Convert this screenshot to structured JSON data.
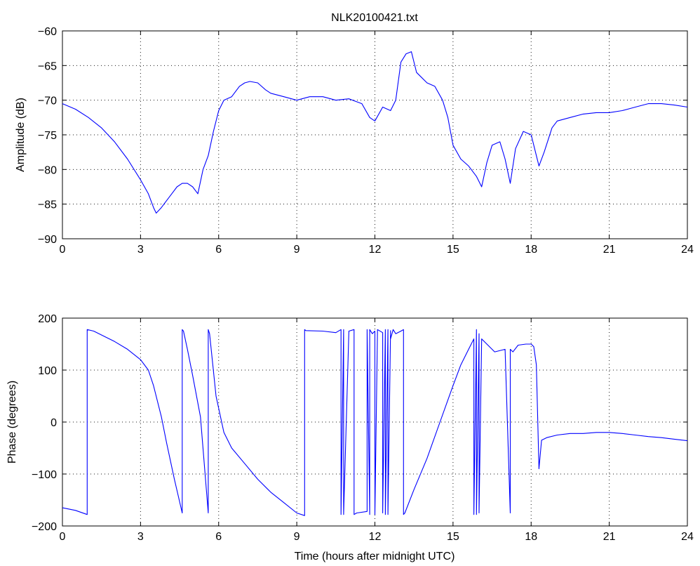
{
  "chart_data": [
    {
      "type": "line",
      "title": "NLK20100421.txt",
      "xlabel": "",
      "ylabel": "Amplitude (dB)",
      "xlim": [
        0,
        24
      ],
      "ylim": [
        -90,
        -60
      ],
      "xticks": [
        0,
        3,
        6,
        9,
        12,
        15,
        18,
        21,
        24
      ],
      "yticks": [
        -90,
        -85,
        -80,
        -75,
        -70,
        -65,
        -60
      ],
      "grid": true,
      "color": "#0000ff",
      "series": [
        {
          "x": [
            0,
            0.5,
            1.0,
            1.5,
            2.0,
            2.5,
            3.0,
            3.3,
            3.5,
            3.6,
            3.8,
            4.0,
            4.2,
            4.4,
            4.6,
            4.8,
            5.0,
            5.2,
            5.4,
            5.6,
            5.8,
            6.0,
            6.2,
            6.5,
            6.8,
            7.0,
            7.2,
            7.5,
            7.8,
            8.0,
            8.5,
            9.0,
            9.5,
            10.0,
            10.5,
            11.0,
            11.5,
            11.8,
            12.0,
            12.3,
            12.6,
            12.8,
            13.0,
            13.2,
            13.4,
            13.6,
            14.0,
            14.3,
            14.6,
            14.8,
            15.0,
            15.3,
            15.6,
            15.9,
            16.1,
            16.3,
            16.5,
            16.8,
            17.0,
            17.2,
            17.4,
            17.7,
            18.0,
            18.3,
            18.5,
            18.8,
            19.0,
            19.5,
            20.0,
            20.5,
            21.0,
            21.5,
            22.0,
            22.5,
            23.0,
            23.5,
            24.0
          ],
          "y": [
            -70.5,
            -71.3,
            -72.5,
            -74.0,
            -76.0,
            -78.5,
            -81.5,
            -83.5,
            -85.5,
            -86.3,
            -85.5,
            -84.5,
            -83.5,
            -82.5,
            -82.0,
            -82.0,
            -82.5,
            -83.5,
            -80.0,
            -78.0,
            -74.5,
            -71.5,
            -70.0,
            -69.5,
            -68.0,
            -67.5,
            -67.3,
            -67.5,
            -68.5,
            -69.0,
            -69.5,
            -70.0,
            -69.5,
            -69.5,
            -70.0,
            -69.8,
            -70.5,
            -72.5,
            -73.0,
            -71.0,
            -71.5,
            -70.0,
            -64.5,
            -63.3,
            -63.0,
            -66.0,
            -67.5,
            -68.0,
            -70.0,
            -72.5,
            -76.5,
            -78.5,
            -79.5,
            -81.0,
            -82.5,
            -79.0,
            -76.5,
            -76.0,
            -78.5,
            -82.0,
            -77.0,
            -74.5,
            -75.0,
            -79.5,
            -77.5,
            -74.0,
            -73.0,
            -72.5,
            -72.0,
            -71.8,
            -71.8,
            -71.5,
            -71.0,
            -70.5,
            -70.5,
            -70.7,
            -71.0
          ]
        }
      ]
    },
    {
      "type": "line",
      "title": "",
      "xlabel": "Time (hours after midnight UTC)",
      "ylabel": "Phase (degrees)",
      "xlim": [
        0,
        24
      ],
      "ylim": [
        -200,
        200
      ],
      "xticks": [
        0,
        3,
        6,
        9,
        12,
        15,
        18,
        21,
        24
      ],
      "yticks": [
        -200,
        -100,
        0,
        100,
        200
      ],
      "grid": true,
      "color": "#0000ff",
      "series": [
        {
          "x": [
            0,
            0.5,
            0.95,
            0.95,
            1.2,
            1.6,
            2.0,
            2.5,
            3.0,
            3.3,
            3.5,
            3.8,
            4.0,
            4.3,
            4.6,
            4.6,
            4.65,
            4.8,
            5.0,
            5.3,
            5.6,
            5.6,
            5.65,
            5.9,
            6.2,
            6.5,
            7.0,
            7.5,
            8.0,
            8.5,
            9.0,
            9.3,
            9.3,
            9.35,
            10.0,
            10.5,
            10.7,
            10.7,
            10.8,
            10.8,
            11.0,
            11.2,
            11.2,
            11.3,
            11.7,
            11.7,
            11.8,
            11.8,
            11.9,
            12.0,
            12.0,
            12.1,
            12.3,
            12.3,
            12.4,
            12.4,
            12.5,
            12.5,
            12.6,
            12.6,
            12.7,
            12.8,
            13.0,
            13.1,
            13.1,
            13.15,
            13.5,
            14.0,
            14.5,
            15.0,
            15.3,
            15.6,
            15.8,
            15.8,
            15.9,
            15.9,
            16.0,
            16.0,
            16.1,
            16.3,
            16.6,
            17.0,
            17.2,
            17.2,
            17.3,
            17.5,
            17.8,
            18.0,
            18.1,
            18.2,
            18.3,
            18.4,
            18.6,
            19.0,
            19.5,
            20.0,
            20.5,
            21.0,
            21.5,
            22.0,
            22.5,
            23.0,
            23.5,
            24.0
          ],
          "y": [
            -165,
            -170,
            -178,
            178,
            175,
            165,
            155,
            140,
            120,
            100,
            70,
            10,
            -40,
            -110,
            -175,
            178,
            175,
            140,
            90,
            10,
            -175,
            178,
            170,
            50,
            -20,
            -50,
            -80,
            -110,
            -135,
            -155,
            -175,
            -180,
            178,
            176,
            175,
            172,
            178,
            -178,
            178,
            -178,
            175,
            178,
            -178,
            -175,
            -172,
            178,
            -178,
            178,
            170,
            175,
            -178,
            178,
            172,
            -175,
            178,
            -178,
            178,
            -178,
            176,
            160,
            178,
            170,
            175,
            178,
            -178,
            -175,
            -130,
            -70,
            0,
            70,
            110,
            140,
            160,
            -178,
            178,
            -178,
            170,
            -175,
            160,
            150,
            135,
            140,
            -175,
            140,
            135,
            148,
            150,
            150,
            145,
            110,
            -90,
            -35,
            -30,
            -25,
            -22,
            -22,
            -20,
            -20,
            -22,
            -25,
            -28,
            -30,
            -33,
            -36
          ]
        }
      ]
    }
  ]
}
